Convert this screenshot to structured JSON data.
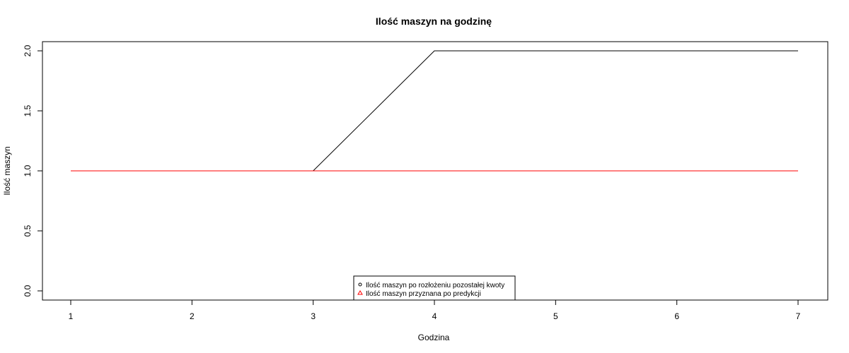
{
  "chart_data": {
    "type": "line",
    "title": "Ilość maszyn na godzinę",
    "xlabel": "Godzina",
    "ylabel": "Ilość maszyn",
    "x": [
      1,
      2,
      3,
      4,
      5,
      6,
      7
    ],
    "xlim": [
      1,
      7
    ],
    "ylim": [
      0,
      2
    ],
    "x_ticks": [
      "1",
      "2",
      "3",
      "4",
      "5",
      "6",
      "7"
    ],
    "y_ticks": [
      "0.0",
      "0.5",
      "1.0",
      "1.5",
      "2.0"
    ],
    "grid": false,
    "legend_position": "bottom-center",
    "series": [
      {
        "name": "Ilość maszyn po rozłożeniu pozostałej kwoty",
        "values": [
          1,
          1,
          1,
          2,
          2,
          2,
          2
        ],
        "color": "#000000",
        "marker": "circle"
      },
      {
        "name": "Ilość maszyn przyznana po predykcji",
        "values": [
          1,
          1,
          1,
          1,
          1,
          1,
          1
        ],
        "color": "#ff0000",
        "marker": "triangle"
      }
    ]
  }
}
